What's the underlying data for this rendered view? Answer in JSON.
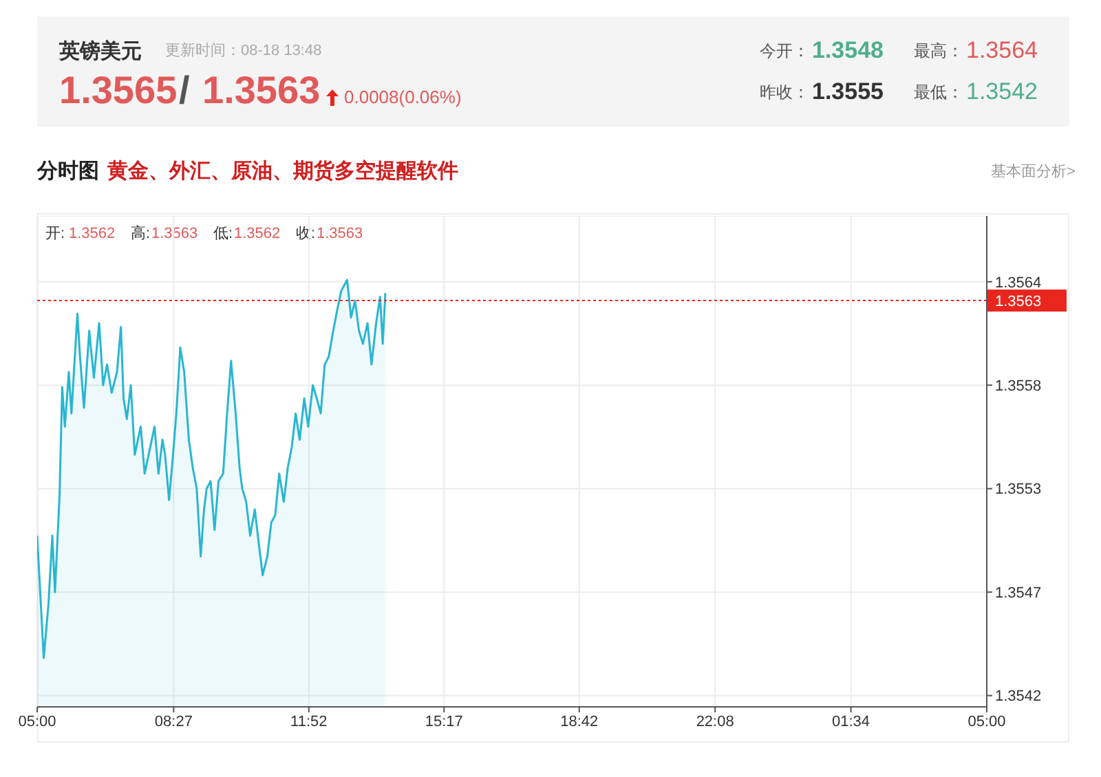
{
  "chart_data": {
    "type": "area",
    "title": "英镑美元",
    "annotations": [
      "更新时间：08-18 13:48",
      "1.3565",
      "/",
      "1.3563",
      "0.0008(0.06%)",
      "今开：",
      "1.3548",
      "最高：",
      "1.3564",
      "昨收：",
      "1.3555",
      "最低：",
      "1.3542",
      "分时图",
      "黄金、外汇、原油、期货多空提醒软件",
      "基本面分析>",
      "开:",
      "1.3562",
      "高:",
      "1.3563",
      "低:",
      "1.3562",
      "收:",
      "1.3563"
    ],
    "x": [
      "--08-18T05:00",
      "--08-18T05:10",
      "--08-18T05:17",
      "--08-18T05:23",
      "--08-18T05:27",
      "--08-18T05:34",
      "--08-18T05:38",
      "--08-18T05:42",
      "--08-18T05:48",
      "--08-18T05:52",
      "--08-18T06:01",
      "--08-18T06:05",
      "--08-18T06:11",
      "--08-18T06:19",
      "--08-18T06:26",
      "--08-18T06:34",
      "--08-18T06:40",
      "--08-18T06:46",
      "--08-18T06:53",
      "--08-18T07:01",
      "--08-18T07:07",
      "--08-18T07:11",
      "--08-18T07:16",
      "--08-18T07:22",
      "--08-18T07:28",
      "--08-18T07:37",
      "--08-18T07:43",
      "--08-18T07:49",
      "--08-18T07:58",
      "--08-18T08:04",
      "--08-18T08:10",
      "--08-18T08:14",
      "--08-18T08:20",
      "--08-18T08:26",
      "--08-18T08:31",
      "--08-18T08:37",
      "--08-18T08:43",
      "--08-18T08:50",
      "--08-18T08:56",
      "--08-18T09:02",
      "--08-18T09:08",
      "--08-18T09:13",
      "--08-18T09:17",
      "--08-18T09:23",
      "--08-18T09:29",
      "--08-18T09:35",
      "--08-18T09:42",
      "--08-18T09:48",
      "--08-18T09:54",
      "--08-18T10:01",
      "--08-18T10:07",
      "--08-18T10:11",
      "--08-18T10:17",
      "--08-18T10:23",
      "--08-18T10:30",
      "--08-18T10:36",
      "--08-18T10:42",
      "--08-18T10:49",
      "--08-18T10:55",
      "--08-18T11:01",
      "--08-18T11:07",
      "--08-18T11:14",
      "--08-18T11:20",
      "--08-18T11:26",
      "--08-18T11:32",
      "--08-18T11:38",
      "--08-18T11:45",
      "--08-18T11:51",
      "--08-18T11:58",
      "--08-18T12:04",
      "--08-18T12:10",
      "--08-18T12:16",
      "--08-18T12:22",
      "--08-18T12:29",
      "--08-18T12:35",
      "--08-18T12:41",
      "--08-18T12:50",
      "--08-18T12:56",
      "--08-18T13:02",
      "--08-18T13:08",
      "--08-18T13:14",
      "--08-18T13:21",
      "--08-18T13:27",
      "--08-18T13:34",
      "--08-18T13:40",
      "--08-18T13:44",
      "--08-18T13:48"
    ],
    "series": [
      {
        "color": "#29b6d0",
        "values": [
          1.35505,
          1.3544,
          1.35468,
          1.35505,
          1.35475,
          1.35527,
          1.35584,
          1.35563,
          1.35592,
          1.3557,
          1.35623,
          1.356,
          1.35573,
          1.35614,
          1.35589,
          1.35618,
          1.35585,
          1.35596,
          1.35581,
          1.35592,
          1.35616,
          1.35578,
          1.35567,
          1.35585,
          1.35548,
          1.35563,
          1.35538,
          1.35548,
          1.35563,
          1.35538,
          1.35556,
          1.35548,
          1.35524,
          1.35548,
          1.3557,
          1.35605,
          1.35592,
          1.35556,
          1.35541,
          1.3553,
          1.35494,
          1.35519,
          1.3553,
          1.35534,
          1.35508,
          1.35534,
          1.35538,
          1.3557,
          1.35598,
          1.3557,
          1.35541,
          1.3553,
          1.35523,
          1.35505,
          1.35519,
          1.35501,
          1.35484,
          1.35494,
          1.35512,
          1.35516,
          1.35538,
          1.35523,
          1.35541,
          1.35552,
          1.3557,
          1.35556,
          1.35578,
          1.35563,
          1.35585,
          1.35578,
          1.3557,
          1.35596,
          1.356,
          1.35614,
          1.35625,
          1.35635,
          1.35641,
          1.35621,
          1.3563,
          1.35614,
          1.35607,
          1.35618,
          1.35596,
          1.35618,
          1.35632,
          1.35607,
          1.35634
        ]
      }
    ],
    "xlim": [
      "--08-18T05:00",
      "--08-19T05:00"
    ],
    "xticks": [
      {
        "value": "--08-18T05:00",
        "label": "05:00"
      },
      {
        "value": "--08-18T08:27",
        "label": "08:27"
      },
      {
        "value": "--08-18T11:52",
        "label": "11:52"
      },
      {
        "value": "--08-18T15:17",
        "label": "15:17"
      },
      {
        "value": "--08-18T18:42",
        "label": "18:42"
      },
      {
        "value": "--08-18T22:08",
        "label": "22:08"
      },
      {
        "value": "--08-19T01:34",
        "label": "01:34"
      },
      {
        "value": "--08-19T05:00",
        "label": "05:00"
      }
    ],
    "ylim": [
      1.35414,
      1.35675
    ],
    "yticks": [
      {
        "value": 1.3542,
        "label": "1.3542"
      },
      {
        "value": 1.35475,
        "label": "1.3547"
      },
      {
        "value": 1.3553,
        "label": "1.3553"
      },
      {
        "value": 1.35585,
        "label": "1.3558"
      },
      {
        "value": 1.3564,
        "label": "1.3564"
      }
    ],
    "ref_lines": [
      {
        "axis": "y",
        "value": 1.3563,
        "label": "1.3563",
        "color": "#e8261e",
        "line_style": "dotted"
      }
    ],
    "grid": true,
    "marker": "none",
    "line_style": "solid"
  }
}
